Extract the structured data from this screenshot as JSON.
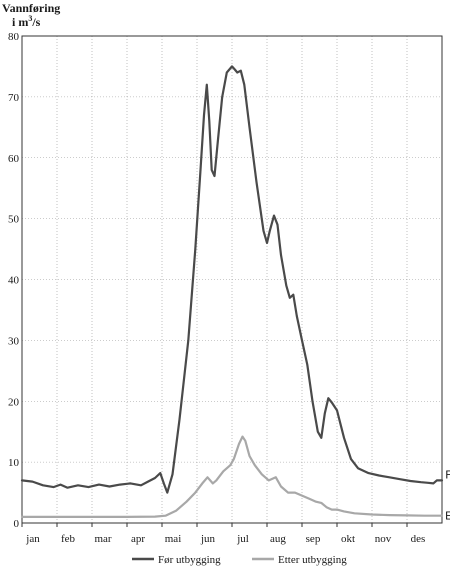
{
  "chart_data": {
    "type": "line",
    "ylabel_line1": "Vannføring",
    "ylabel_line2": "i m",
    "ylabel_sup": "3",
    "ylabel_line2_end": "/s",
    "ylim": [
      0,
      80
    ],
    "yticks": [
      0,
      10,
      20,
      30,
      40,
      50,
      60,
      70,
      80
    ],
    "xlim": [
      0,
      12
    ],
    "categories": [
      "jan",
      "feb",
      "mar",
      "apr",
      "mai",
      "jun",
      "jul",
      "aug",
      "sep",
      "okt",
      "nov",
      "des"
    ],
    "grid": true,
    "legend_position": "bottom",
    "series": [
      {
        "name": "Før utbygging",
        "end_label": "Før",
        "color": "#4a4a4a",
        "points": [
          [
            0.0,
            7.0
          ],
          [
            0.3,
            6.8
          ],
          [
            0.6,
            6.2
          ],
          [
            0.9,
            5.9
          ],
          [
            1.1,
            6.3
          ],
          [
            1.3,
            5.8
          ],
          [
            1.6,
            6.2
          ],
          [
            1.9,
            5.9
          ],
          [
            2.2,
            6.3
          ],
          [
            2.5,
            6.0
          ],
          [
            2.8,
            6.3
          ],
          [
            3.1,
            6.5
          ],
          [
            3.4,
            6.2
          ],
          [
            3.6,
            6.8
          ],
          [
            3.8,
            7.4
          ],
          [
            3.95,
            8.2
          ],
          [
            4.05,
            6.5
          ],
          [
            4.15,
            5.0
          ],
          [
            4.3,
            8.0
          ],
          [
            4.5,
            17.0
          ],
          [
            4.75,
            30.0
          ],
          [
            4.95,
            45.0
          ],
          [
            5.1,
            58.0
          ],
          [
            5.2,
            67.0
          ],
          [
            5.28,
            72.0
          ],
          [
            5.35,
            66.0
          ],
          [
            5.42,
            58.0
          ],
          [
            5.5,
            57.0
          ],
          [
            5.6,
            63.0
          ],
          [
            5.72,
            70.0
          ],
          [
            5.85,
            74.0
          ],
          [
            6.0,
            75.0
          ],
          [
            6.08,
            74.5
          ],
          [
            6.15,
            74.0
          ],
          [
            6.25,
            74.3
          ],
          [
            6.35,
            72.0
          ],
          [
            6.5,
            65.0
          ],
          [
            6.7,
            56.0
          ],
          [
            6.9,
            48.0
          ],
          [
            7.0,
            46.0
          ],
          [
            7.08,
            48.0
          ],
          [
            7.2,
            50.5
          ],
          [
            7.3,
            49.0
          ],
          [
            7.4,
            44.0
          ],
          [
            7.55,
            39.0
          ],
          [
            7.65,
            37.0
          ],
          [
            7.75,
            37.5
          ],
          [
            7.85,
            34.0
          ],
          [
            8.0,
            30.0
          ],
          [
            8.15,
            26.0
          ],
          [
            8.3,
            20.0
          ],
          [
            8.45,
            15.0
          ],
          [
            8.55,
            14.0
          ],
          [
            8.65,
            18.0
          ],
          [
            8.75,
            20.5
          ],
          [
            8.85,
            19.8
          ],
          [
            9.0,
            18.5
          ],
          [
            9.2,
            14.0
          ],
          [
            9.4,
            10.5
          ],
          [
            9.6,
            9.0
          ],
          [
            9.9,
            8.2
          ],
          [
            10.2,
            7.8
          ],
          [
            10.5,
            7.5
          ],
          [
            10.8,
            7.2
          ],
          [
            11.1,
            6.9
          ],
          [
            11.4,
            6.7
          ],
          [
            11.6,
            6.6
          ],
          [
            11.75,
            6.5
          ],
          [
            11.85,
            7.0
          ],
          [
            12.0,
            7.0
          ]
        ]
      },
      {
        "name": "Etter utbygging",
        "end_label": "Etter",
        "color": "#a8a8a8",
        "points": [
          [
            0.0,
            1.0
          ],
          [
            1.0,
            1.0
          ],
          [
            2.0,
            1.0
          ],
          [
            3.0,
            1.0
          ],
          [
            3.8,
            1.05
          ],
          [
            4.1,
            1.2
          ],
          [
            4.4,
            2.0
          ],
          [
            4.7,
            3.5
          ],
          [
            4.95,
            5.0
          ],
          [
            5.15,
            6.5
          ],
          [
            5.3,
            7.5
          ],
          [
            5.45,
            6.5
          ],
          [
            5.55,
            7.0
          ],
          [
            5.75,
            8.5
          ],
          [
            5.95,
            9.5
          ],
          [
            6.05,
            10.5
          ],
          [
            6.2,
            13.0
          ],
          [
            6.3,
            14.2
          ],
          [
            6.38,
            13.5
          ],
          [
            6.5,
            11.0
          ],
          [
            6.65,
            9.5
          ],
          [
            6.85,
            8.0
          ],
          [
            7.05,
            7.0
          ],
          [
            7.25,
            7.5
          ],
          [
            7.4,
            6.0
          ],
          [
            7.6,
            5.0
          ],
          [
            7.8,
            5.0
          ],
          [
            8.0,
            4.5
          ],
          [
            8.2,
            4.0
          ],
          [
            8.4,
            3.5
          ],
          [
            8.55,
            3.3
          ],
          [
            8.7,
            2.6
          ],
          [
            8.85,
            2.2
          ],
          [
            9.0,
            2.2
          ],
          [
            9.2,
            1.9
          ],
          [
            9.5,
            1.6
          ],
          [
            10.0,
            1.4
          ],
          [
            10.5,
            1.3
          ],
          [
            11.0,
            1.25
          ],
          [
            11.5,
            1.2
          ],
          [
            12.0,
            1.2
          ]
        ]
      }
    ]
  }
}
